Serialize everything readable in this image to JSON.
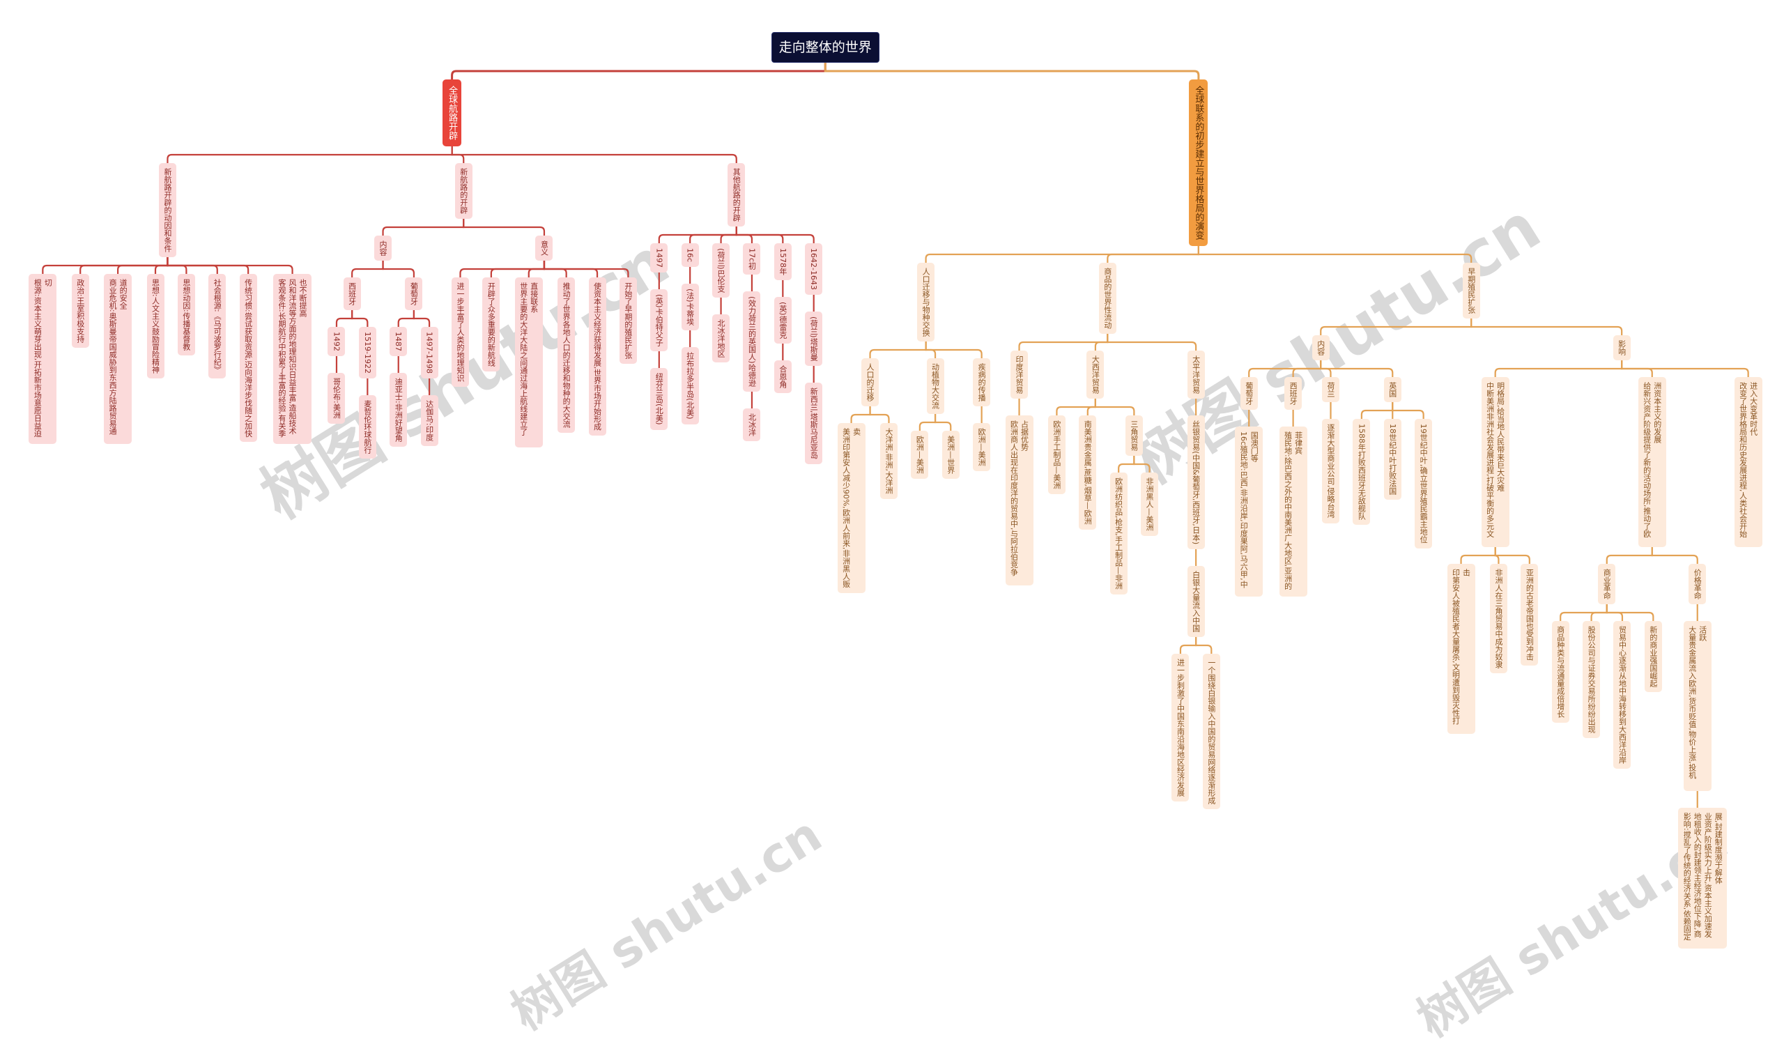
{
  "watermark": "树图 shutu.cn",
  "colors": {
    "root_bg": "#0b0f33",
    "branch_a_line": "#c4403a",
    "branch_a_main": "#e8443a",
    "branch_a_node": "#fbdada",
    "branch_b_line": "#e3a255",
    "branch_b_main": "#f29c40",
    "branch_b_node": "#fdeadb"
  },
  "mindmap": {
    "root": {
      "text": "走向整体的世界",
      "children": [
        {
          "text": "全球航路开辟",
          "children": [
            {
              "text": "新航路开辟的动因和条件",
              "children": [
                {
                  "text": "根源:资本主义萌芽出现,开拓新市场意愿日益迫切"
                },
                {
                  "text": "政治:王室积极支持"
                },
                {
                  "text": "商业危机:奥斯曼帝国威胁到东西方陆路贸易通道的安全"
                },
                {
                  "text": "思想:人文主义鼓励冒险精神"
                },
                {
                  "text": "思想动因:传播基督教"
                },
                {
                  "text": "社会根源:《马可波罗行纪》"
                },
                {
                  "text": "传统习惯:尝试获取资源,迈向海洋步伐随之加快"
                },
                {
                  "text": "客观条件:长期航行中积累了丰富的经验,有关季风和洋流等方面的地理知识日益丰富,造船技术也不断提高"
                }
              ]
            },
            {
              "text": "新航路的开辟",
              "children": [
                {
                  "text": "内容",
                  "children": [
                    {
                      "text": "西班牙",
                      "children": [
                        {
                          "text": "1492",
                          "children": [
                            {
                              "text": "哥伦布:美洲"
                            }
                          ]
                        },
                        {
                          "text": "1519-1922",
                          "children": [
                            {
                              "text": "麦哲伦环球航行"
                            }
                          ]
                        }
                      ]
                    },
                    {
                      "text": "葡萄牙",
                      "children": [
                        {
                          "text": "1487",
                          "children": [
                            {
                              "text": "迪亚士:非洲好望角"
                            }
                          ]
                        },
                        {
                          "text": "1497-1498",
                          "children": [
                            {
                              "text": "达伽马:印度"
                            }
                          ]
                        }
                      ]
                    }
                  ]
                },
                {
                  "text": "意义",
                  "children": [
                    {
                      "text": "进一步丰富了人类的地理知识"
                    },
                    {
                      "text": "开辟了众多重要的新航线"
                    },
                    {
                      "text": "世界主要的大洋大陆之间通过海上航线建立了直接联系"
                    },
                    {
                      "text": "推动了世界各地人口的迁移和物种的大交流"
                    },
                    {
                      "text": "使资本主义经济获得发展,世界市场开始形成"
                    },
                    {
                      "text": "开始了早期的殖民扩张"
                    }
                  ]
                }
              ]
            },
            {
              "text": "其他航路的开辟",
              "children": [
                {
                  "text": "1497",
                  "children": [
                    {
                      "text": "(英)卡伯特父子",
                      "children": [
                        {
                          "text": "纽芬兰岛(北美)"
                        }
                      ]
                    }
                  ]
                },
                {
                  "text": "16c",
                  "children": [
                    {
                      "text": "(法)卡蒂埃",
                      "children": [
                        {
                          "text": "拉布拉多半岛(北美)"
                        }
                      ]
                    }
                  ]
                },
                {
                  "text": "(荷兰)巴伦支",
                  "children": [
                    {
                      "text": "北冰洋地区"
                    }
                  ]
                },
                {
                  "text": "17c初",
                  "children": [
                    {
                      "text": "(效力荷兰的英国人)哈德逊",
                      "children": [
                        {
                          "text": "北冰洋"
                        }
                      ]
                    }
                  ]
                },
                {
                  "text": "1578年",
                  "children": [
                    {
                      "text": "(英)德雷克",
                      "children": [
                        {
                          "text": "合恩角"
                        }
                      ]
                    }
                  ]
                },
                {
                  "text": "1642-1643",
                  "children": [
                    {
                      "text": "(荷兰)塔斯曼",
                      "children": [
                        {
                          "text": "新西兰,塔斯马尼亚岛"
                        }
                      ]
                    }
                  ]
                }
              ]
            }
          ]
        },
        {
          "text": "全球联系的初步建立与世界格局的演变",
          "children": [
            {
              "text": "人口迁移与物种交换",
              "children": [
                {
                  "text": "人口的迁移",
                  "children": [
                    {
                      "text": "美洲印第安人减少90%,欧洲人前来,非洲黑人贩卖"
                    },
                    {
                      "text": "大洋洲,非洲,大洋洲"
                    }
                  ]
                },
                {
                  "text": "动植物大交流",
                  "children": [
                    {
                      "text": "欧洲—美洲"
                    },
                    {
                      "text": "美洲—世界"
                    }
                  ]
                },
                {
                  "text": "疾病的传播",
                  "children": [
                    {
                      "text": "欧洲—美洲"
                    }
                  ]
                }
              ]
            },
            {
              "text": "商品的世界性流动",
              "children": [
                {
                  "text": "印度洋贸易",
                  "children": [
                    {
                      "text": "欧洲商人出现在印度洋的贸易中,与阿拉伯竞争占据优势"
                    }
                  ]
                },
                {
                  "text": "大西洋贸易",
                  "children": [
                    {
                      "text": "欧洲手工制品—美洲"
                    },
                    {
                      "text": "南美洲贵金属,蔗糖,烟草—欧洲"
                    },
                    {
                      "text": "三角贸易",
                      "children": [
                        {
                          "text": "欧洲纺织品,枪支,手工制品—非洲"
                        },
                        {
                          "text": "非洲黑人—美洲"
                        }
                      ]
                    }
                  ]
                },
                {
                  "text": "太平洋贸易",
                  "children": [
                    {
                      "text": "丝银贸易(中国&葡萄牙,西班牙,日本)",
                      "children": [
                        {
                          "text": "白银大量流入中国",
                          "children": [
                            {
                              "text": "进一步刺激了中国东南沿海地区经济发展"
                            },
                            {
                              "text": "一个围绕白银输入中国的贸易网络逐渐形成"
                            }
                          ]
                        }
                      ]
                    }
                  ]
                }
              ]
            },
            {
              "text": "早期殖民扩张",
              "children": [
                {
                  "text": "内容",
                  "children": [
                    {
                      "text": "葡萄牙",
                      "children": [
                        {
                          "text": "16c殖民地:巴西,非洲沿岸,印度果阿,马六甲,中国澳门等"
                        }
                      ]
                    },
                    {
                      "text": "西班牙",
                      "children": [
                        {
                          "text": "殖民地:除巴西之外的中南美洲广大地区,亚洲的菲律宾"
                        }
                      ]
                    },
                    {
                      "text": "荷兰",
                      "children": [
                        {
                          "text": "逐渐大型商业公司,侵略台湾"
                        }
                      ]
                    },
                    {
                      "text": "英国",
                      "children": [
                        {
                          "text": "1588年打败西班牙无敌舰队"
                        },
                        {
                          "text": "18世纪中叶打败法国"
                        },
                        {
                          "text": "19世纪中叶,确立世界殖民霸主地位"
                        }
                      ]
                    }
                  ]
                },
                {
                  "text": "影响",
                  "children": [
                    {
                      "text": "中断美洲非洲社会发展进程,打破平衡的多元文明格局,给当地人民带来巨大灾难",
                      "children": [
                        {
                          "text": "印第安人被殖民者大量屠杀,文明遭到毁灭性打击"
                        },
                        {
                          "text": "非洲人在三角贸易中成为奴隶"
                        },
                        {
                          "text": "亚洲的古老帝国也受到冲击"
                        }
                      ]
                    },
                    {
                      "text": "给新兴资产阶级提供了新的活动场所,推动了欧洲资本主义的发展",
                      "children": [
                        {
                          "text": "商业革命",
                          "children": [
                            {
                              "text": "商品种类与流通量成倍增长"
                            },
                            {
                              "text": "股份公司与证券交易所纷纷出现"
                            },
                            {
                              "text": "贸易中心逐渐从地中海转移到大西洋沿岸"
                            },
                            {
                              "text": "新的商业强国崛起"
                            }
                          ]
                        },
                        {
                          "text": "价格革命",
                          "children": [
                            {
                              "text": "大量贵金属流入欧洲,货币贬值,物价上涨,投机活跃",
                              "children": [
                                {
                                  "text": "影响:搅乱了传统的经济关系,依赖固定地租收入的封建领主经济地位下降,商业资产阶级实力上升,资本主义加速发展,封建制度濒于解体"
                                }
                              ]
                            }
                          ]
                        }
                      ]
                    },
                    {
                      "text": "改变了世界格局和历史发展进程,人类社会开始进入大变革时代"
                    }
                  ]
                }
              ]
            }
          ]
        }
      ]
    }
  }
}
